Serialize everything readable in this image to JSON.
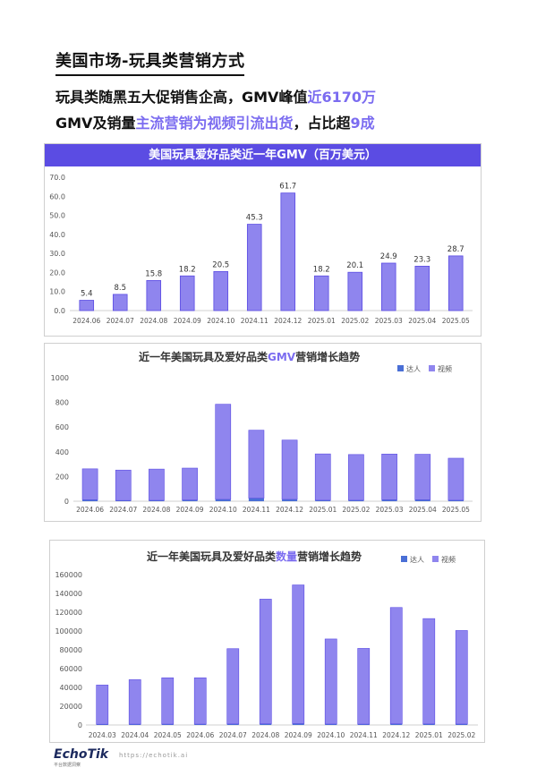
{
  "page": {
    "title": "美国市场-玩具类营销方式",
    "headline1": {
      "pre": "玩具类随黑五大促销售企高，GMV峰值",
      "highlight": "近6170万"
    },
    "headline2": {
      "pre": "GMV及销量",
      "highlight": "主流营销为视频引流出货",
      "mid": "，占比超",
      "highlight2": "9成"
    }
  },
  "footer": {
    "logo": "EchoTik",
    "logo_sub": "平台数据洞察",
    "url": "https://echotik.ai"
  },
  "colors": {
    "purple_bar": "#8f85ee",
    "purple_dark": "#5b4ce3",
    "blue_bar": "#4a6fd6",
    "accent": "#7b6cf0"
  },
  "chart_data": [
    {
      "type": "bar",
      "title": "美国玩具爱好品类近一年GMV（百万美元）",
      "categories": [
        "2024.06",
        "2024.07",
        "2024.08",
        "2024.09",
        "2024.10",
        "2024.11",
        "2024.12",
        "2025.01",
        "2025.02",
        "2025.03",
        "2025.04",
        "2025.05"
      ],
      "values": [
        5.4,
        8.5,
        15.8,
        18.2,
        20.5,
        45.3,
        61.7,
        18.2,
        20.1,
        24.9,
        23.3,
        28.7
      ],
      "value_labels": [
        "5.4",
        "8.5",
        "15.8",
        "18.2",
        "20.5",
        "45.3",
        "61.7",
        "18.2",
        "20.1",
        "24.9",
        "23.3",
        "28.7"
      ],
      "ylim": [
        0,
        70
      ],
      "yticks": [
        "0.0",
        "10.0",
        "20.0",
        "30.0",
        "40.0",
        "50.0",
        "60.0",
        "70.0"
      ],
      "grid": false
    },
    {
      "type": "bar",
      "stacked": true,
      "title_parts": {
        "pre": "近一年美国玩具及爱好品类",
        "highlight": "GMV",
        "post": "营销增长趋势"
      },
      "categories": [
        "2024.06",
        "2024.07",
        "2024.08",
        "2024.09",
        "2024.10",
        "2024.11",
        "2024.12",
        "2025.01",
        "2025.02",
        "2025.03",
        "2025.04",
        "2025.05"
      ],
      "series": [
        {
          "name": "达人",
          "values": [
            12,
            6,
            7,
            10,
            15,
            25,
            15,
            8,
            8,
            12,
            12,
            8
          ]
        },
        {
          "name": "视频",
          "values": [
            250,
            246,
            253,
            258,
            770,
            550,
            480,
            375,
            370,
            370,
            368,
            340
          ]
        }
      ],
      "ylim": [
        0,
        1000
      ],
      "yticks": [
        "0",
        "200",
        "400",
        "600",
        "800",
        "1000"
      ],
      "legend": "top-right",
      "grid": false
    },
    {
      "type": "bar",
      "stacked": true,
      "title_parts": {
        "pre": "近一年美国玩具及爱好品类",
        "highlight": "数量",
        "post": "营销增长趋势"
      },
      "categories": [
        "2024.03",
        "2024.04",
        "2024.05",
        "2024.06",
        "2024.07",
        "2024.08",
        "2024.09",
        "2024.10",
        "2024.11",
        "2024.12",
        "2025.01",
        "2025.02"
      ],
      "series": [
        {
          "name": "达人",
          "values": [
            800,
            900,
            900,
            900,
            1100,
            1300,
            1500,
            1000,
            900,
            1200,
            1100,
            1000
          ]
        },
        {
          "name": "视频",
          "values": [
            41700,
            47300,
            49300,
            49300,
            80100,
            132600,
            147500,
            90500,
            80600,
            123800,
            112100,
            99500
          ]
        }
      ],
      "ylim": [
        0,
        160000
      ],
      "yticks": [
        "0",
        "20000",
        "40000",
        "60000",
        "80000",
        "100000",
        "120000",
        "140000",
        "160000"
      ],
      "legend": "top-right",
      "grid": false
    }
  ]
}
